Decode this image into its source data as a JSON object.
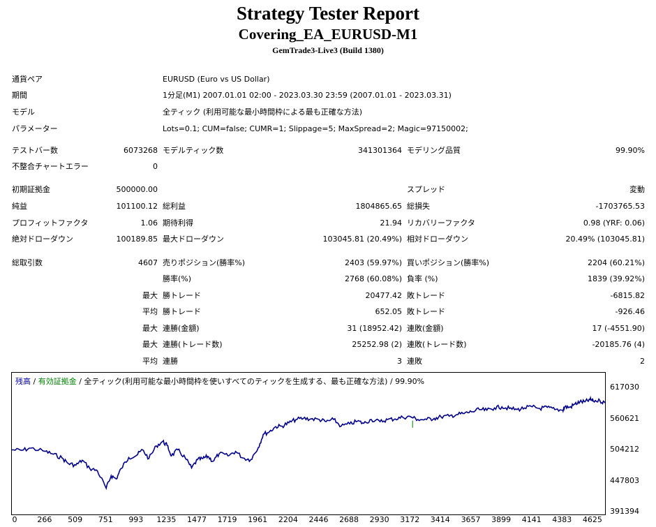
{
  "header": {
    "title": "Strategy Tester Report",
    "subtitle": "Covering_EA_EURUSD-M1",
    "build": "GemTrade3-Live3 (Build 1380)"
  },
  "info": {
    "pair_label": "通貨ペア",
    "pair_value": "EURUSD (Euro vs US Dollar)",
    "period_label": "期間",
    "period_value": "1分足(M1) 2007.01.01 02:00 - 2023.03.30 23:59 (2007.01.01 - 2023.03.31)",
    "model_label": "モデル",
    "model_value": "全ティック (利用可能な最小時間枠による最も正確な方法)",
    "params_label": "パラメーター",
    "params_value": "Lots=0.1; CUM=false; CUMR=1; Slippage=5; MaxSpread=2; Magic=97150002;"
  },
  "stats": {
    "bars_label": "テストバー数",
    "bars_value": "6073268",
    "model_ticks_label": "モデルティック数",
    "model_ticks_value": "341301364",
    "model_quality_label": "モデリング品質",
    "model_quality_value": "99.90%",
    "mismatch_label": "不整合チャートエラー",
    "mismatch_value": "0",
    "deposit_label": "初期証拠金",
    "deposit_value": "500000.00",
    "spread_label": "スプレッド",
    "spread_value": "変動",
    "net_label": "純益",
    "net_value": "101100.12",
    "gross_profit_label": "総利益",
    "gross_profit_value": "1804865.65",
    "gross_loss_label": "総損失",
    "gross_loss_value": "-1703765.53",
    "pf_label": "プロフィットファクタ",
    "pf_value": "1.06",
    "expected_label": "期待利得",
    "expected_value": "21.94",
    "recovery_label": "リカバリーファクタ",
    "recovery_value": "0.98 (YRF: 0.06)",
    "abs_dd_label": "絶対ドローダウン",
    "abs_dd_value": "100189.85",
    "max_dd_label": "最大ドローダウン",
    "max_dd_value": "103045.81 (20.49%)",
    "rel_dd_label": "相対ドローダウン",
    "rel_dd_value": "20.49% (103045.81)",
    "trades_label": "総取引数",
    "trades_value": "4607",
    "short_label": "売りポジション(勝率%)",
    "short_value": "2403 (59.97%)",
    "long_label": "買いポジション(勝率%)",
    "long_value": "2204 (60.21%)",
    "win_pct_label": "勝率(%)",
    "win_pct_value": "2768 (60.08%)",
    "loss_pct_label": "負率 (%)",
    "loss_pct_value": "1839 (39.92%)",
    "max_label_1": "最大",
    "largest_win_label": "勝トレード",
    "largest_win_value": "20477.42",
    "largest_loss_label": "敗トレード",
    "largest_loss_value": "-6815.82",
    "avg_label_1": "平均",
    "avg_win_label": "勝トレード",
    "avg_win_value": "652.05",
    "avg_loss_label": "敗トレード",
    "avg_loss_value": "-926.46",
    "max_label_2": "最大",
    "cons_wins_amt_label": "連勝(金額)",
    "cons_wins_amt_value": "31 (18952.42)",
    "cons_losses_amt_label": "連敗(金額)",
    "cons_losses_amt_value": "17 (-4551.90)",
    "max_label_3": "最大",
    "cons_profit_label": "連勝(トレード数)",
    "cons_profit_value": "25252.98 (2)",
    "cons_loss_label": "連敗(トレード数)",
    "cons_loss_value": "-20185.76 (4)",
    "avg_label_2": "平均",
    "avg_cons_wins_label": "連勝",
    "avg_cons_wins_value": "3",
    "avg_cons_losses_label": "連敗",
    "avg_cons_losses_value": "2"
  },
  "legend": {
    "balance": "残高",
    "sep1": " / ",
    "equity": "有効証拠金",
    "sep2": " / ",
    "model": "全ティック(利用可能な最小時間枠を使いすべてのティックを生成する、最も正確な方法)",
    "sep3": " / ",
    "quality": "99.90%",
    "balance_color": "#0000aa",
    "equity_color": "#008000"
  },
  "chart_data": {
    "type": "line",
    "title": "",
    "xlabel": "",
    "ylabel": "",
    "x_ticks": [
      "0",
      "266",
      "509",
      "751",
      "993",
      "1235",
      "1477",
      "1719",
      "1961",
      "2204",
      "2446",
      "2688",
      "2930",
      "3172",
      "3414",
      "3657",
      "3899",
      "4141",
      "4383",
      "4625"
    ],
    "y_ticks": [
      "617030",
      "560621",
      "504212",
      "447803",
      "391394"
    ],
    "xlim": [
      0,
      4720
    ],
    "ylim": [
      391394,
      617030
    ],
    "grid": false,
    "line_color": "#00008b",
    "equity_color": "#008000",
    "series": [
      {
        "x": [
          0,
          80,
          150,
          266,
          330,
          400,
          450,
          509,
          560,
          620,
          680,
          751,
          790,
          830,
          870,
          930,
          993,
          1040,
          1090,
          1150,
          1200,
          1235,
          1270,
          1320,
          1380,
          1430,
          1477,
          1520,
          1560,
          1600,
          1650,
          1719,
          1780,
          1840,
          1900,
          1961,
          2000,
          2050,
          2100,
          2150,
          2204,
          2260,
          2320,
          2380,
          2446,
          2500,
          2560,
          2620,
          2688,
          2750,
          2800,
          2860,
          2930,
          2990,
          3050,
          3110,
          3172,
          3230,
          3300,
          3360,
          3414,
          3480,
          3540,
          3600,
          3657,
          3720,
          3780,
          3840,
          3899,
          3960,
          4020,
          4080,
          4141,
          4200,
          4260,
          4320,
          4383,
          4400,
          4440,
          4480,
          4520,
          4560,
          4600,
          4625,
          4680,
          4720
        ],
        "y": [
          505000,
          504000,
          508000,
          502000,
          497000,
          490000,
          480000,
          477000,
          486000,
          471000,
          467000,
          435000,
          458000,
          452000,
          471000,
          491000,
          495000,
          505000,
          489000,
          512000,
          520000,
          513000,
          494000,
          505000,
          490000,
          472000,
          487000,
          489000,
          493000,
          484000,
          498000,
          494000,
          502000,
          490000,
          487000,
          509000,
          533000,
          538000,
          547000,
          548000,
          554000,
          560000,
          562000,
          561000,
          560000,
          556000,
          560000,
          548000,
          552000,
          557000,
          553000,
          560000,
          556000,
          560000,
          561000,
          564000,
          565000,
          560000,
          560000,
          562000,
          565000,
          566000,
          569000,
          571000,
          574000,
          578000,
          577000,
          581000,
          583000,
          580000,
          578000,
          581000,
          583000,
          580000,
          582000,
          578000,
          577000,
          583000,
          582000,
          588000,
          592000,
          592000,
          596000,
          594000,
          594000,
          590000
        ]
      }
    ]
  }
}
